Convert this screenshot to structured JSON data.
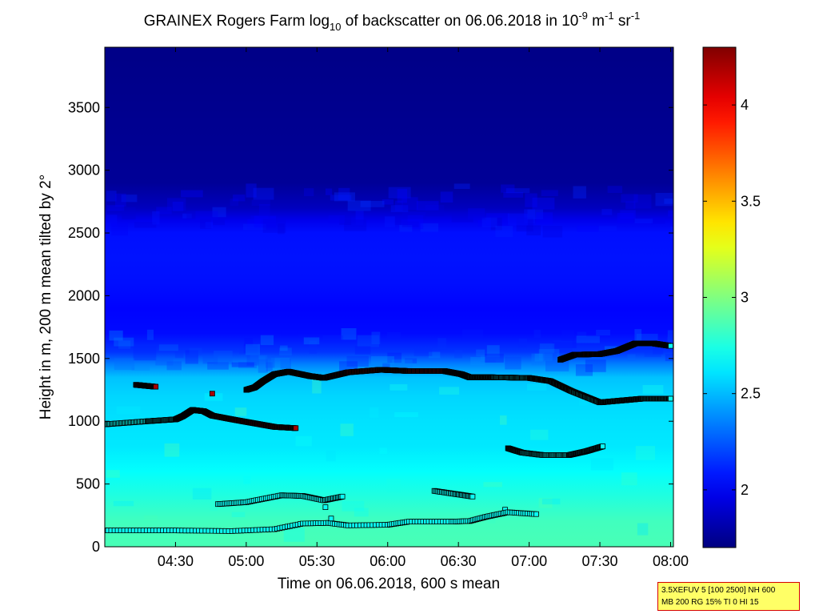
{
  "chart_data": {
    "type": "heatmap",
    "title": {
      "p1": "GRAINEX Rogers Farm log",
      "sub": "10",
      "p2": " of backscatter on 06.06.2018 in 10",
      "sup1": "-9",
      "p3": " m",
      "sup2": "-1",
      "p4": " sr",
      "sup3": "-1"
    },
    "xlabel": "Time on 06.06.2018, 600 s mean",
    "ylabel": "Height in m, 200 m mean tilted by 2°",
    "x_ticks": [
      {
        "v": 4.5,
        "label": "04:30"
      },
      {
        "v": 5.0,
        "label": "05:00"
      },
      {
        "v": 5.5,
        "label": "05:30"
      },
      {
        "v": 6.0,
        "label": "06:00"
      },
      {
        "v": 6.5,
        "label": "06:30"
      },
      {
        "v": 7.0,
        "label": "07:00"
      },
      {
        "v": 7.5,
        "label": "07:30"
      },
      {
        "v": 8.0,
        "label": "08:00"
      }
    ],
    "y_ticks": [
      {
        "v": 0,
        "label": "0"
      },
      {
        "v": 500,
        "label": "500"
      },
      {
        "v": 1000,
        "label": "1000"
      },
      {
        "v": 1500,
        "label": "1500"
      },
      {
        "v": 2000,
        "label": "2000"
      },
      {
        "v": 2500,
        "label": "2500"
      },
      {
        "v": 3000,
        "label": "3000"
      },
      {
        "v": 3500,
        "label": "3500"
      }
    ],
    "xlim": [
      4.0,
      8.02
    ],
    "ylim": [
      0,
      3980
    ],
    "colorbar": {
      "range": [
        1.7,
        4.3
      ],
      "colormap": "jet",
      "ticks": [
        {
          "v": 2.0,
          "label": "2"
        },
        {
          "v": 2.5,
          "label": "2.5"
        },
        {
          "v": 3.0,
          "label": "3"
        },
        {
          "v": 3.5,
          "label": "3.5"
        },
        {
          "v": 4.0,
          "label": "4"
        }
      ]
    },
    "profile": [
      {
        "h": 0,
        "v": 2.86
      },
      {
        "h": 200,
        "v": 2.84
      },
      {
        "h": 400,
        "v": 2.76
      },
      {
        "h": 600,
        "v": 2.68
      },
      {
        "h": 800,
        "v": 2.62
      },
      {
        "h": 1000,
        "v": 2.6
      },
      {
        "h": 1200,
        "v": 2.57
      },
      {
        "h": 1350,
        "v": 2.52
      },
      {
        "h": 1450,
        "v": 2.36
      },
      {
        "h": 1550,
        "v": 2.16
      },
      {
        "h": 1700,
        "v": 2.05
      },
      {
        "h": 1900,
        "v": 2.03
      },
      {
        "h": 2100,
        "v": 2.06
      },
      {
        "h": 2300,
        "v": 2.07
      },
      {
        "h": 2500,
        "v": 2.06
      },
      {
        "h": 2600,
        "v": 1.98
      },
      {
        "h": 2700,
        "v": 1.86
      },
      {
        "h": 2900,
        "v": 1.76
      },
      {
        "h": 3980,
        "v": 1.72
      }
    ],
    "layers": [
      {
        "v": 2.7,
        "pts": [
          [
            4.0,
            975
          ],
          [
            4.3,
            1000
          ],
          [
            4.5,
            1015
          ],
          [
            4.55,
            1040
          ],
          [
            4.62,
            1090
          ],
          [
            4.7,
            1080
          ],
          [
            4.76,
            1045
          ]
        ]
      },
      {
        "v": 4.2,
        "pts": [
          [
            4.76,
            1045
          ],
          [
            4.9,
            1015
          ],
          [
            5.05,
            985
          ],
          [
            5.2,
            955
          ],
          [
            5.35,
            945
          ]
        ]
      },
      {
        "v": 4.2,
        "pts": [
          [
            4.22,
            1290
          ],
          [
            4.36,
            1275
          ]
        ]
      },
      {
        "v": 4.2,
        "pts": [
          [
            4.76,
            1220
          ]
        ]
      },
      {
        "v": 3.1,
        "pts": [
          [
            5.0,
            1250
          ],
          [
            5.06,
            1270
          ],
          [
            5.12,
            1320
          ]
        ]
      },
      {
        "v": 2.7,
        "pts": [
          [
            5.12,
            1320
          ],
          [
            5.2,
            1375
          ],
          [
            5.3,
            1395
          ]
        ]
      },
      {
        "v": 4.2,
        "pts": [
          [
            5.3,
            1395
          ],
          [
            5.45,
            1360
          ],
          [
            5.55,
            1345
          ],
          [
            5.72,
            1390
          ],
          [
            5.95,
            1410
          ],
          [
            6.15,
            1400
          ],
          [
            6.4,
            1400
          ],
          [
            6.52,
            1375
          ],
          [
            6.58,
            1350
          ]
        ]
      },
      {
        "v": 2.7,
        "pts": [
          [
            6.58,
            1350
          ],
          [
            6.75,
            1350
          ],
          [
            7.0,
            1345
          ],
          [
            7.15,
            1320
          ],
          [
            7.3,
            1240
          ],
          [
            7.5,
            1150
          ],
          [
            7.65,
            1165
          ],
          [
            7.8,
            1180
          ],
          [
            8.0,
            1180
          ]
        ]
      },
      {
        "v": 4.2,
        "pts": [
          [
            7.22,
            1490
          ],
          [
            7.32,
            1530
          ],
          [
            7.5,
            1535
          ],
          [
            7.62,
            1560
          ]
        ]
      },
      {
        "v": 2.7,
        "pts": [
          [
            7.62,
            1560
          ],
          [
            7.75,
            1620
          ],
          [
            7.88,
            1620
          ],
          [
            8.0,
            1600
          ]
        ]
      },
      {
        "v": 2.7,
        "pts": [
          [
            6.85,
            785
          ],
          [
            6.95,
            750
          ],
          [
            7.1,
            730
          ],
          [
            7.28,
            730
          ],
          [
            7.4,
            760
          ],
          [
            7.52,
            800
          ]
        ]
      },
      {
        "v": 2.7,
        "pts": [
          [
            4.8,
            340
          ],
          [
            5.0,
            355
          ],
          [
            5.25,
            410
          ],
          [
            5.4,
            405
          ],
          [
            5.55,
            370
          ],
          [
            5.68,
            400
          ]
        ]
      },
      {
        "v": 2.7,
        "pts": [
          [
            5.56,
            315
          ]
        ]
      },
      {
        "v": 2.7,
        "pts": [
          [
            6.33,
            445
          ],
          [
            6.48,
            420
          ],
          [
            6.6,
            400
          ]
        ]
      },
      {
        "v": 2.7,
        "pts": [
          [
            6.83,
            295
          ]
        ]
      },
      {
        "v": 2.7,
        "pts": [
          [
            4.0,
            130
          ],
          [
            4.5,
            130
          ],
          [
            4.9,
            125
          ],
          [
            5.2,
            140
          ],
          [
            5.4,
            185
          ],
          [
            5.58,
            190
          ],
          [
            5.72,
            170
          ],
          [
            6.0,
            175
          ],
          [
            6.15,
            200
          ],
          [
            6.45,
            200
          ],
          [
            6.58,
            205
          ],
          [
            6.7,
            240
          ],
          [
            6.85,
            275
          ],
          [
            7.05,
            260
          ]
        ]
      },
      {
        "v": 2.7,
        "pts": [
          [
            5.6,
            225
          ]
        ]
      }
    ]
  },
  "info_box": {
    "line1": "3.5XEFUV 5 [100 2500] NH 600",
    "line2": "MB 200 RG 15% TI 0 HI 15"
  }
}
